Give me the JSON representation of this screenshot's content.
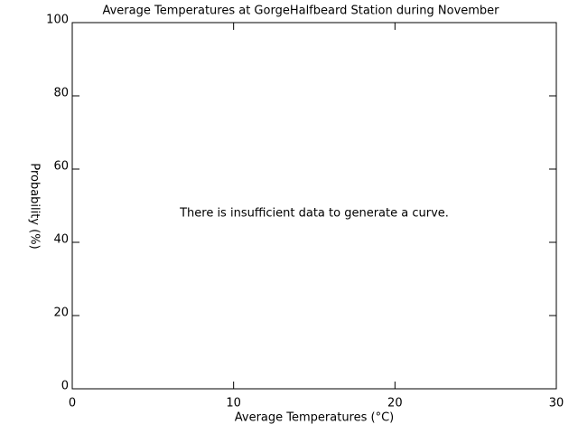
{
  "chart_data": {
    "type": "line",
    "title": "Average Temperatures at GorgeHalfbeard Station during November",
    "x_label": "Average Temperatures (°C)",
    "y_label": "Probability (%)",
    "annotation": "There is insufficient data to generate a curve.",
    "xlim": [
      0,
      30
    ],
    "xticks": [
      0,
      10,
      20,
      30
    ],
    "ylim": [
      0,
      100
    ],
    "yticks": [
      0,
      20,
      40,
      60,
      80,
      100
    ]
  }
}
